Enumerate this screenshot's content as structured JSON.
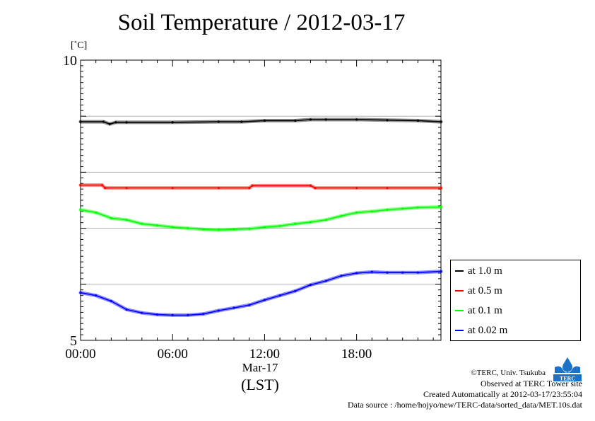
{
  "chart_data": {
    "type": "line",
    "title": "Soil Temperature / 2012-03-17",
    "unit": "[˚C]",
    "ylim": [
      5,
      10
    ],
    "y_ticks": [
      "5",
      "10"
    ],
    "y_gridlines": [
      6,
      7,
      8,
      9
    ],
    "xlim": [
      0,
      23.5
    ],
    "x_ticks": [
      {
        "hour": 0,
        "label": "00:00"
      },
      {
        "hour": 6,
        "label": "06:00"
      },
      {
        "hour": 12,
        "label": "12:00"
      },
      {
        "hour": 18,
        "label": "18:00"
      }
    ],
    "x_sublabel": "Mar-17",
    "xlabel": "(LST)",
    "grid": "horizontal",
    "legend_position": "right",
    "series": [
      {
        "name": "at 1.0 m",
        "color": "#000000",
        "points": [
          [
            0,
            8.9
          ],
          [
            1.5,
            8.9
          ],
          [
            1.9,
            8.86
          ],
          [
            2.3,
            8.89
          ],
          [
            3,
            8.89
          ],
          [
            6,
            8.89
          ],
          [
            9,
            8.9
          ],
          [
            10.5,
            8.9
          ],
          [
            12,
            8.92
          ],
          [
            14,
            8.92
          ],
          [
            15,
            8.94
          ],
          [
            16,
            8.94
          ],
          [
            18,
            8.94
          ],
          [
            20,
            8.93
          ],
          [
            22,
            8.92
          ],
          [
            23.5,
            8.9
          ]
        ]
      },
      {
        "name": "at 0.5 m",
        "color": "#ff0000",
        "points": [
          [
            0,
            7.77
          ],
          [
            1.4,
            7.77
          ],
          [
            1.6,
            7.72
          ],
          [
            3,
            7.72
          ],
          [
            6,
            7.72
          ],
          [
            9,
            7.72
          ],
          [
            11,
            7.72
          ],
          [
            11.2,
            7.76
          ],
          [
            15,
            7.76
          ],
          [
            15.3,
            7.72
          ],
          [
            18,
            7.72
          ],
          [
            20,
            7.72
          ],
          [
            23.5,
            7.72
          ]
        ]
      },
      {
        "name": "at 0.1 m",
        "color": "#00ff00",
        "points": [
          [
            0,
            7.33
          ],
          [
            1,
            7.28
          ],
          [
            2,
            7.18
          ],
          [
            3,
            7.15
          ],
          [
            4,
            7.08
          ],
          [
            5,
            7.05
          ],
          [
            6,
            7.02
          ],
          [
            7,
            7.0
          ],
          [
            8,
            6.98
          ],
          [
            9,
            6.97
          ],
          [
            10,
            6.98
          ],
          [
            11,
            6.99
          ],
          [
            12,
            7.02
          ],
          [
            13,
            7.04
          ],
          [
            14,
            7.08
          ],
          [
            15,
            7.11
          ],
          [
            16,
            7.15
          ],
          [
            17,
            7.22
          ],
          [
            18,
            7.28
          ],
          [
            19,
            7.3
          ],
          [
            20,
            7.33
          ],
          [
            21,
            7.35
          ],
          [
            22,
            7.37
          ],
          [
            23.5,
            7.38
          ]
        ]
      },
      {
        "name": "at 0.02 m",
        "color": "#0000ff",
        "points": [
          [
            0,
            5.85
          ],
          [
            1,
            5.8
          ],
          [
            2,
            5.7
          ],
          [
            3,
            5.55
          ],
          [
            4,
            5.49
          ],
          [
            5,
            5.46
          ],
          [
            6,
            5.45
          ],
          [
            7,
            5.45
          ],
          [
            8,
            5.47
          ],
          [
            9,
            5.53
          ],
          [
            10,
            5.58
          ],
          [
            11,
            5.63
          ],
          [
            12,
            5.72
          ],
          [
            13,
            5.8
          ],
          [
            14,
            5.88
          ],
          [
            15,
            5.99
          ],
          [
            16,
            6.06
          ],
          [
            17,
            6.15
          ],
          [
            18,
            6.2
          ],
          [
            19,
            6.22
          ],
          [
            20,
            6.21
          ],
          [
            21,
            6.21
          ],
          [
            22,
            6.21
          ],
          [
            23.5,
            6.23
          ]
        ]
      }
    ]
  },
  "credits": {
    "copyright": "©TERC, Univ. Tsukuba",
    "site": "Observed at TERC Tower site",
    "created": "Created Automatically at 2012-03-17/23:55:04",
    "source": "Data source : /home/hojyo/new/TERC-data/sorted_data/MET.10s.dat"
  },
  "logo_text": "TERC"
}
